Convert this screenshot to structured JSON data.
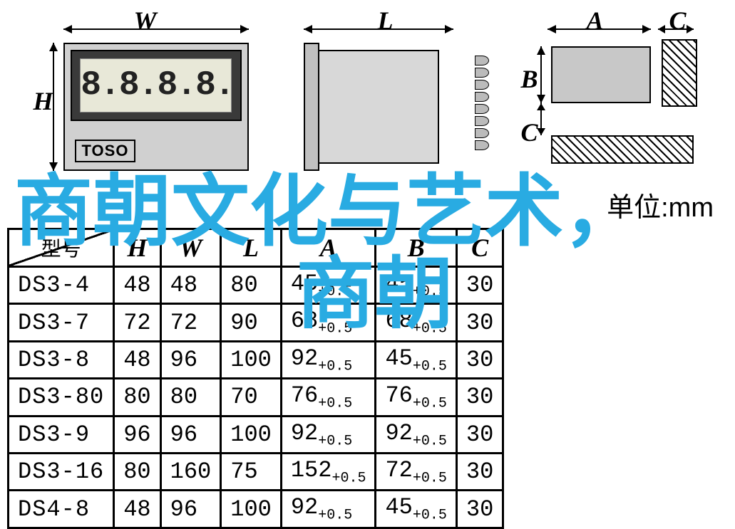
{
  "diagrams": {
    "front": {
      "width_label": "W",
      "height_label": "H",
      "brand": "TOSO",
      "lcd": "8.8.8.8."
    },
    "side": {
      "length_label": "L"
    },
    "cutout": {
      "a_label": "A",
      "b_label": "B",
      "c_label": "C"
    }
  },
  "unit_label": "单位:mm",
  "table": {
    "header_model": "型号",
    "columns": [
      "H",
      "W",
      "L",
      "A",
      "B",
      "C"
    ],
    "tolerance": "+0.5",
    "rows": [
      {
        "model": "DS3-4",
        "H": "48",
        "W": "48",
        "L": "80",
        "A": "45",
        "B": "45",
        "C": "30"
      },
      {
        "model": "DS3-7",
        "H": "72",
        "W": "72",
        "L": "90",
        "A": "68",
        "B": "68",
        "C": "30"
      },
      {
        "model": "DS3-8",
        "H": "48",
        "W": "96",
        "L": "100",
        "A": "92",
        "B": "45",
        "C": "30"
      },
      {
        "model": "DS3-80",
        "H": "80",
        "W": "80",
        "L": "70",
        "A": "76",
        "B": "76",
        "C": "30"
      },
      {
        "model": "DS3-9",
        "H": "96",
        "W": "96",
        "L": "100",
        "A": "92",
        "B": "92",
        "C": "30"
      },
      {
        "model": "DS3-16",
        "H": "80",
        "W": "160",
        "L": "75",
        "A": "152",
        "B": "72",
        "C": "30"
      },
      {
        "model": "DS4-8",
        "H": "48",
        "W": "96",
        "L": "100",
        "A": "92",
        "B": "45",
        "C": "30"
      }
    ]
  },
  "overlay": {
    "color": "#29abe2",
    "line1": "商朝文化与艺术，",
    "line2": "商朝"
  }
}
